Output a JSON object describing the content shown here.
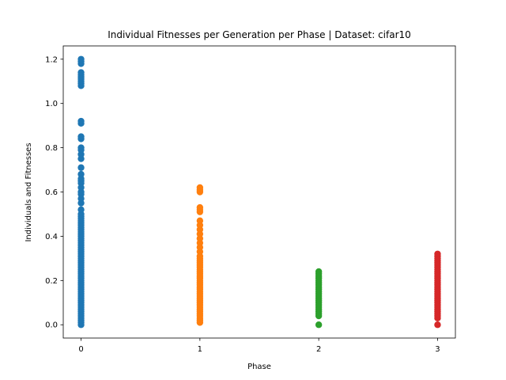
{
  "chart_data": {
    "type": "scatter",
    "title": "Individual Fitnesses per Generation per Phase | Dataset: cifar10",
    "xlabel": "Phase",
    "ylabel": "Individuals and Fitnesses",
    "xlim": [
      -0.15,
      3.15
    ],
    "ylim": [
      -0.06,
      1.26
    ],
    "xticks": [
      0,
      1,
      2,
      3
    ],
    "xtick_labels": [
      "0",
      "1",
      "2",
      "3"
    ],
    "yticks": [
      0.0,
      0.2,
      0.4,
      0.6,
      0.8,
      1.0,
      1.2
    ],
    "ytick_labels": [
      "0.0",
      "0.2",
      "0.4",
      "0.6",
      "0.8",
      "1.0",
      "1.2"
    ],
    "grid": false,
    "series": [
      {
        "color": "#1f77b4",
        "x": 0,
        "values": [
          0.0,
          0.01,
          0.02,
          0.03,
          0.04,
          0.05,
          0.06,
          0.07,
          0.08,
          0.09,
          0.1,
          0.11,
          0.12,
          0.13,
          0.14,
          0.15,
          0.16,
          0.17,
          0.18,
          0.19,
          0.2,
          0.21,
          0.22,
          0.23,
          0.24,
          0.25,
          0.26,
          0.27,
          0.28,
          0.29,
          0.3,
          0.31,
          0.32,
          0.33,
          0.34,
          0.35,
          0.36,
          0.37,
          0.38,
          0.39,
          0.4,
          0.41,
          0.42,
          0.43,
          0.44,
          0.45,
          0.46,
          0.47,
          0.48,
          0.49,
          0.5,
          0.52,
          0.55,
          0.57,
          0.59,
          0.6,
          0.62,
          0.64,
          0.65,
          0.66,
          0.68,
          0.71,
          0.75,
          0.77,
          0.79,
          0.8,
          0.84,
          0.85,
          0.91,
          0.92,
          1.08,
          1.09,
          1.1,
          1.11,
          1.12,
          1.13,
          1.14,
          1.18,
          1.19,
          1.2
        ]
      },
      {
        "color": "#ff7f0e",
        "x": 1,
        "values": [
          0.01,
          0.02,
          0.03,
          0.04,
          0.05,
          0.06,
          0.07,
          0.08,
          0.09,
          0.1,
          0.11,
          0.12,
          0.13,
          0.14,
          0.15,
          0.16,
          0.17,
          0.18,
          0.19,
          0.2,
          0.21,
          0.22,
          0.23,
          0.24,
          0.25,
          0.26,
          0.27,
          0.28,
          0.29,
          0.3,
          0.31,
          0.33,
          0.35,
          0.37,
          0.39,
          0.41,
          0.43,
          0.45,
          0.47,
          0.51,
          0.52,
          0.53,
          0.6,
          0.61,
          0.62
        ]
      },
      {
        "color": "#2ca02c",
        "x": 2,
        "values": [
          0.0,
          0.04,
          0.05,
          0.06,
          0.07,
          0.08,
          0.09,
          0.1,
          0.11,
          0.12,
          0.13,
          0.14,
          0.15,
          0.16,
          0.17,
          0.18,
          0.19,
          0.2,
          0.21,
          0.22,
          0.23,
          0.24
        ]
      },
      {
        "color": "#d62728",
        "x": 3,
        "values": [
          0.0,
          0.03,
          0.04,
          0.05,
          0.06,
          0.07,
          0.08,
          0.09,
          0.1,
          0.11,
          0.12,
          0.13,
          0.14,
          0.15,
          0.16,
          0.17,
          0.18,
          0.19,
          0.2,
          0.21,
          0.22,
          0.23,
          0.24,
          0.25,
          0.26,
          0.27,
          0.28,
          0.29,
          0.3,
          0.31,
          0.32
        ]
      }
    ]
  }
}
